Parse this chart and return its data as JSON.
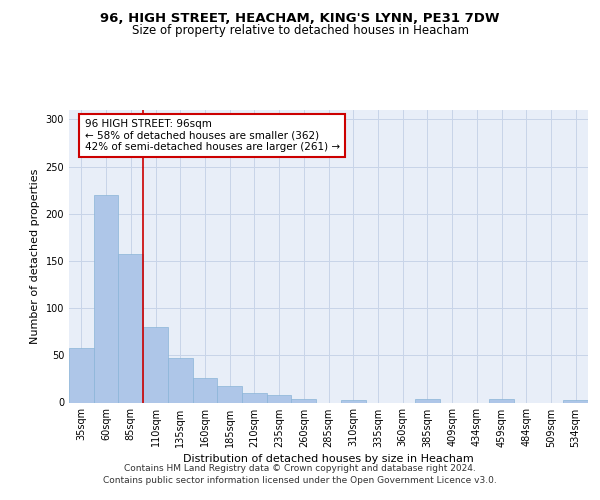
{
  "title_line1": "96, HIGH STREET, HEACHAM, KING'S LYNN, PE31 7DW",
  "title_line2": "Size of property relative to detached houses in Heacham",
  "xlabel": "Distribution of detached houses by size in Heacham",
  "ylabel": "Number of detached properties",
  "categories": [
    "35sqm",
    "60sqm",
    "85sqm",
    "110sqm",
    "135sqm",
    "160sqm",
    "185sqm",
    "210sqm",
    "235sqm",
    "260sqm",
    "285sqm",
    "310sqm",
    "335sqm",
    "360sqm",
    "385sqm",
    "409sqm",
    "434sqm",
    "459sqm",
    "484sqm",
    "509sqm",
    "534sqm"
  ],
  "values": [
    58,
    220,
    157,
    80,
    47,
    26,
    18,
    10,
    8,
    4,
    0,
    3,
    0,
    0,
    4,
    0,
    0,
    4,
    0,
    0,
    3
  ],
  "bar_color": "#aec6e8",
  "bar_edge_color": "#8ab4d8",
  "grid_color": "#c8d4e8",
  "background_color": "#e8eef8",
  "vline_x": 2.5,
  "vline_color": "#cc0000",
  "annotation_text": "96 HIGH STREET: 96sqm\n← 58% of detached houses are smaller (362)\n42% of semi-detached houses are larger (261) →",
  "annotation_box_color": "#cc0000",
  "ylim": [
    0,
    310
  ],
  "yticks": [
    0,
    50,
    100,
    150,
    200,
    250,
    300
  ],
  "footer_line1": "Contains HM Land Registry data © Crown copyright and database right 2024.",
  "footer_line2": "Contains public sector information licensed under the Open Government Licence v3.0.",
  "title_fontsize": 9.5,
  "subtitle_fontsize": 8.5,
  "axis_label_fontsize": 8,
  "tick_fontsize": 7,
  "annotation_fontsize": 7.5,
  "footer_fontsize": 6.5
}
